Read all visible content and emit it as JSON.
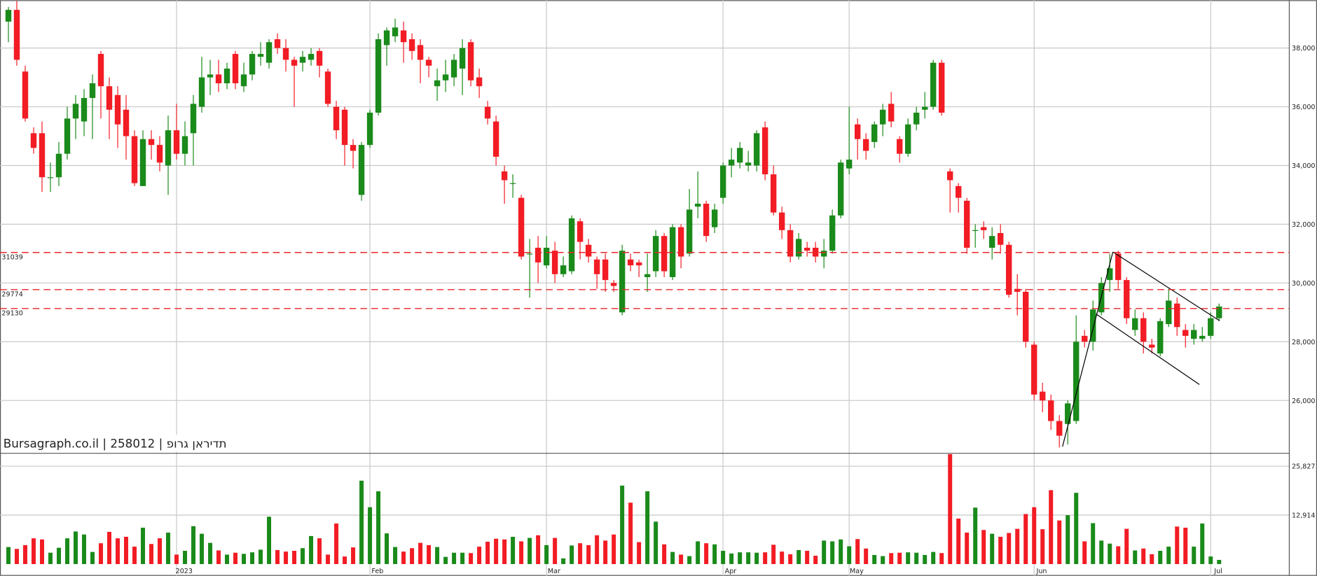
{
  "chart_data": {
    "type": "candlestick",
    "title": "Bursagraph.co.il | 258012 | תדיראן גרופ",
    "categories": [
      null,
      null,
      null,
      null,
      null,
      null,
      null,
      null,
      null,
      null,
      null,
      null,
      null,
      null,
      null,
      null,
      null,
      null,
      null,
      null,
      "2023",
      null,
      null,
      null,
      null,
      null,
      null,
      null,
      null,
      null,
      null,
      null,
      null,
      null,
      null,
      null,
      null,
      null,
      null,
      null,
      null,
      null,
      null,
      "Feb",
      null,
      null,
      null,
      null,
      null,
      null,
      null,
      null,
      null,
      null,
      null,
      null,
      null,
      null,
      null,
      null,
      null,
      null,
      null,
      null,
      "Mar",
      null,
      null,
      null,
      null,
      null,
      null,
      null,
      null,
      null,
      null,
      null,
      null,
      null,
      null,
      null,
      null,
      null,
      null,
      null,
      null,
      "Apr",
      null,
      null,
      null,
      null,
      null,
      null,
      null,
      null,
      null,
      null,
      null,
      null,
      null,
      null,
      "May",
      null,
      null,
      null,
      null,
      null,
      null,
      null,
      null,
      null,
      null,
      null,
      null,
      null,
      null,
      null,
      null,
      null,
      null,
      null,
      null,
      null,
      "Jun",
      null,
      null,
      null,
      null,
      null,
      null,
      null,
      null,
      null,
      null,
      null,
      null,
      null,
      null,
      null,
      null,
      null,
      null,
      null,
      null,
      "Jul",
      null
    ],
    "open": [
      38900,
      39300,
      37200,
      35100,
      35100,
      33600,
      33600,
      34400,
      35600,
      35500,
      36300,
      37800,
      36700,
      36400,
      35900,
      35000,
      33300,
      34900,
      34700,
      34000,
      35200,
      34400,
      35100,
      36000,
      37000,
      37100,
      36800,
      37800,
      36700,
      37100,
      37700,
      37500,
      38300,
      38000,
      37600,
      37500,
      37600,
      37900,
      37200,
      36000,
      35900,
      34700,
      33000,
      34700,
      35800,
      38100,
      38400,
      38600,
      38300,
      38100,
      37600,
      36700,
      36900,
      37000,
      37300,
      38200,
      37000,
      36000,
      35500,
      33800,
      33400,
      32900,
      31000,
      31200,
      30600,
      31100,
      30300,
      30400,
      32100,
      31300,
      30800,
      30800,
      30000,
      29000,
      30800,
      30700,
      30200,
      30400,
      31600,
      30200,
      31900,
      31000,
      32600,
      32700,
      31900,
      32900,
      34000,
      34100,
      34000,
      34000,
      35300,
      33700,
      32400,
      31800,
      30900,
      31200,
      31200,
      30900,
      31100,
      32300,
      33900,
      35400,
      34900,
      34800,
      35400,
      36100,
      34900,
      34400,
      35400,
      35900,
      36000,
      37500,
      33800,
      33300,
      32800,
      31800,
      31900,
      31200,
      31700,
      31300,
      29800,
      29700,
      27900,
      26300,
      26000,
      25300,
      25200,
      25300,
      28200,
      28000,
      29000,
      30100,
      31000,
      30100,
      28400,
      28800,
      27900,
      27600,
      28600,
      29300,
      28400,
      28100,
      28100,
      28200,
      28800
    ],
    "high": [
      39400,
      39600,
      37400,
      35300,
      35500,
      34100,
      34800,
      36000,
      36400,
      36600,
      37100,
      37900,
      37000,
      36700,
      36400,
      35200,
      35200,
      35200,
      35000,
      35700,
      36100,
      35500,
      36400,
      37700,
      37600,
      37600,
      37500,
      37900,
      37500,
      37900,
      38200,
      38300,
      38500,
      38300,
      37700,
      37900,
      38000,
      38000,
      37300,
      36200,
      36000,
      34900,
      34800,
      35900,
      38500,
      38700,
      39000,
      38900,
      38500,
      38300,
      37700,
      37300,
      37600,
      37800,
      38300,
      38300,
      37300,
      36200,
      35700,
      34000,
      33700,
      33000,
      31500,
      31600,
      31600,
      31400,
      30900,
      32300,
      32200,
      31500,
      30900,
      31000,
      30100,
      31300,
      31000,
      30800,
      31000,
      31800,
      31700,
      32000,
      32000,
      33200,
      33800,
      32800,
      32700,
      34100,
      34600,
      34800,
      34500,
      35200,
      35500,
      34000,
      32600,
      32000,
      31700,
      31400,
      31400,
      31500,
      32500,
      34200,
      36000,
      35600,
      35100,
      35500,
      36100,
      36500,
      35000,
      35600,
      36000,
      36500,
      37600,
      37600,
      33900,
      33400,
      32900,
      32000,
      32100,
      31900,
      32000,
      31400,
      30300,
      29800,
      28000,
      26600,
      26200,
      25500,
      26000,
      28900,
      28400,
      29400,
      30200,
      31000,
      31100,
      30200,
      29100,
      29000,
      28100,
      28800,
      29800,
      29500,
      28600,
      28600,
      28500,
      29000,
      29300
    ],
    "low": [
      38200,
      37400,
      35500,
      34400,
      33100,
      33100,
      33300,
      34200,
      34900,
      35000,
      34900,
      35600,
      34900,
      34600,
      34200,
      33300,
      33300,
      34200,
      33800,
      33000,
      34200,
      34000,
      34000,
      35800,
      36400,
      36500,
      36600,
      36600,
      36500,
      36900,
      37400,
      37300,
      37800,
      37200,
      36000,
      37200,
      37400,
      37000,
      36000,
      34900,
      34000,
      33900,
      32800,
      34600,
      35700,
      37400,
      38200,
      37500,
      37600,
      36800,
      37000,
      36200,
      36500,
      36700,
      36400,
      36700,
      36300,
      35400,
      34000,
      32700,
      32900,
      30800,
      29500,
      30000,
      30500,
      30000,
      30200,
      30300,
      30800,
      30700,
      29800,
      29700,
      29700,
      28900,
      30400,
      30200,
      29700,
      30200,
      30200,
      30100,
      30500,
      30900,
      32200,
      31400,
      31700,
      32700,
      33600,
      33900,
      33800,
      33800,
      33500,
      32300,
      31500,
      30700,
      30800,
      30900,
      30700,
      30500,
      31000,
      32200,
      33700,
      34200,
      34200,
      34600,
      35000,
      35300,
      34100,
      34300,
      35200,
      35600,
      35900,
      35700,
      32400,
      32400,
      31000,
      31200,
      31500,
      30800,
      31000,
      29500,
      28900,
      27800,
      26000,
      25600,
      25000,
      24400,
      24500,
      25200,
      27800,
      27700,
      28900,
      29700,
      29800,
      28600,
      28200,
      27600,
      27600,
      27500,
      28500,
      28200,
      27800,
      27900,
      28000,
      28100,
      28700
    ],
    "close": [
      39300,
      37600,
      35600,
      34600,
      33600,
      33600,
      34400,
      35600,
      36100,
      36300,
      36800,
      36700,
      35900,
      35400,
      35000,
      33400,
      34900,
      34700,
      34100,
      35200,
      34400,
      35000,
      36100,
      37000,
      37100,
      36800,
      37300,
      36800,
      37100,
      37800,
      37800,
      38200,
      38000,
      37600,
      37400,
      37700,
      37800,
      37400,
      36100,
      35200,
      34700,
      34500,
      34700,
      35800,
      38300,
      38600,
      38700,
      38200,
      37900,
      37600,
      37400,
      36900,
      37100,
      37600,
      38000,
      36900,
      36700,
      35600,
      34300,
      33500,
      33400,
      30900,
      31000,
      30700,
      31200,
      30300,
      30600,
      32200,
      31400,
      30900,
      30300,
      30100,
      29900,
      31100,
      30600,
      30600,
      30300,
      31600,
      30400,
      31900,
      30900,
      32500,
      32700,
      31600,
      32500,
      34000,
      34200,
      34600,
      34100,
      35100,
      33700,
      32400,
      31800,
      30900,
      31500,
      31100,
      30900,
      31100,
      32300,
      34100,
      34200,
      34900,
      34500,
      35400,
      35900,
      35500,
      34400,
      35400,
      35800,
      36000,
      37500,
      35800,
      33500,
      32900,
      31200,
      31800,
      31800,
      31600,
      31300,
      29600,
      29700,
      28000,
      26200,
      26000,
      25300,
      24800,
      25900,
      28000,
      28000,
      29100,
      30000,
      30500,
      30100,
      28800,
      28800,
      28000,
      27800,
      28700,
      29400,
      28500,
      28200,
      28400,
      28200,
      28800,
      29200
    ],
    "volume": [
      4500,
      4000,
      5000,
      6800,
      6500,
      3000,
      4300,
      6800,
      8600,
      7800,
      3200,
      5500,
      8500,
      6800,
      7200,
      4600,
      9600,
      5300,
      6800,
      8300,
      2500,
      3500,
      10000,
      8000,
      5600,
      3600,
      2500,
      3000,
      2700,
      3100,
      3800,
      12500,
      3700,
      3300,
      3500,
      4200,
      7400,
      6800,
      2500,
      10700,
      2000,
      4400,
      22000,
      15000,
      19200,
      8100,
      4500,
      3300,
      4200,
      5600,
      5000,
      4500,
      1900,
      3000,
      3000,
      2900,
      4600,
      5900,
      6700,
      6500,
      7200,
      6000,
      6900,
      7600,
      5000,
      6900,
      1500,
      4900,
      5500,
      5000,
      7600,
      6200,
      7800,
      20700,
      16200,
      5800,
      19200,
      11200,
      5200,
      3200,
      2500,
      2100,
      6000,
      5500,
      5200,
      3500,
      2800,
      3100,
      3100,
      3000,
      3100,
      5100,
      3300,
      2600,
      3700,
      3500,
      2200,
      6200,
      6000,
      6500,
      4700,
      6600,
      4100,
      2400,
      2100,
      2900,
      3000,
      3100,
      3000,
      2400,
      3200,
      2900,
      29000,
      12000,
      8300,
      14900,
      9000,
      8000,
      7200,
      8200,
      9300,
      13200,
      15000,
      9200,
      19500,
      11500,
      12900,
      18800,
      6000,
      10800,
      6200,
      5400,
      4700,
      9300,
      3600,
      4100,
      2600,
      3500,
      4600,
      9900,
      9600,
      4600,
      10700,
      2000,
      1100
    ],
    "up_color": "#1a8a1a",
    "down_color": "#f21c24",
    "ylim": [
      24200,
      39630
    ],
    "yticks": [
      {
        "value": 26000,
        "label": "26,000"
      },
      {
        "value": 28000,
        "label": "28,000"
      },
      {
        "value": 30000,
        "label": "30,000"
      },
      {
        "value": 32000,
        "label": "32,000"
      },
      {
        "value": 34000,
        "label": "34,000"
      },
      {
        "value": 36000,
        "label": "36,000"
      },
      {
        "value": 38000,
        "label": "38,000"
      }
    ],
    "volume_lim": [
      0,
      29000
    ],
    "volume_ticks": [
      {
        "value": 12914,
        "label": "12,914"
      },
      {
        "value": 25827,
        "label": "25,827"
      }
    ],
    "hlines": [
      31039,
      29774,
      29130
    ],
    "hline_color": "#e8262a",
    "grid": true
  }
}
